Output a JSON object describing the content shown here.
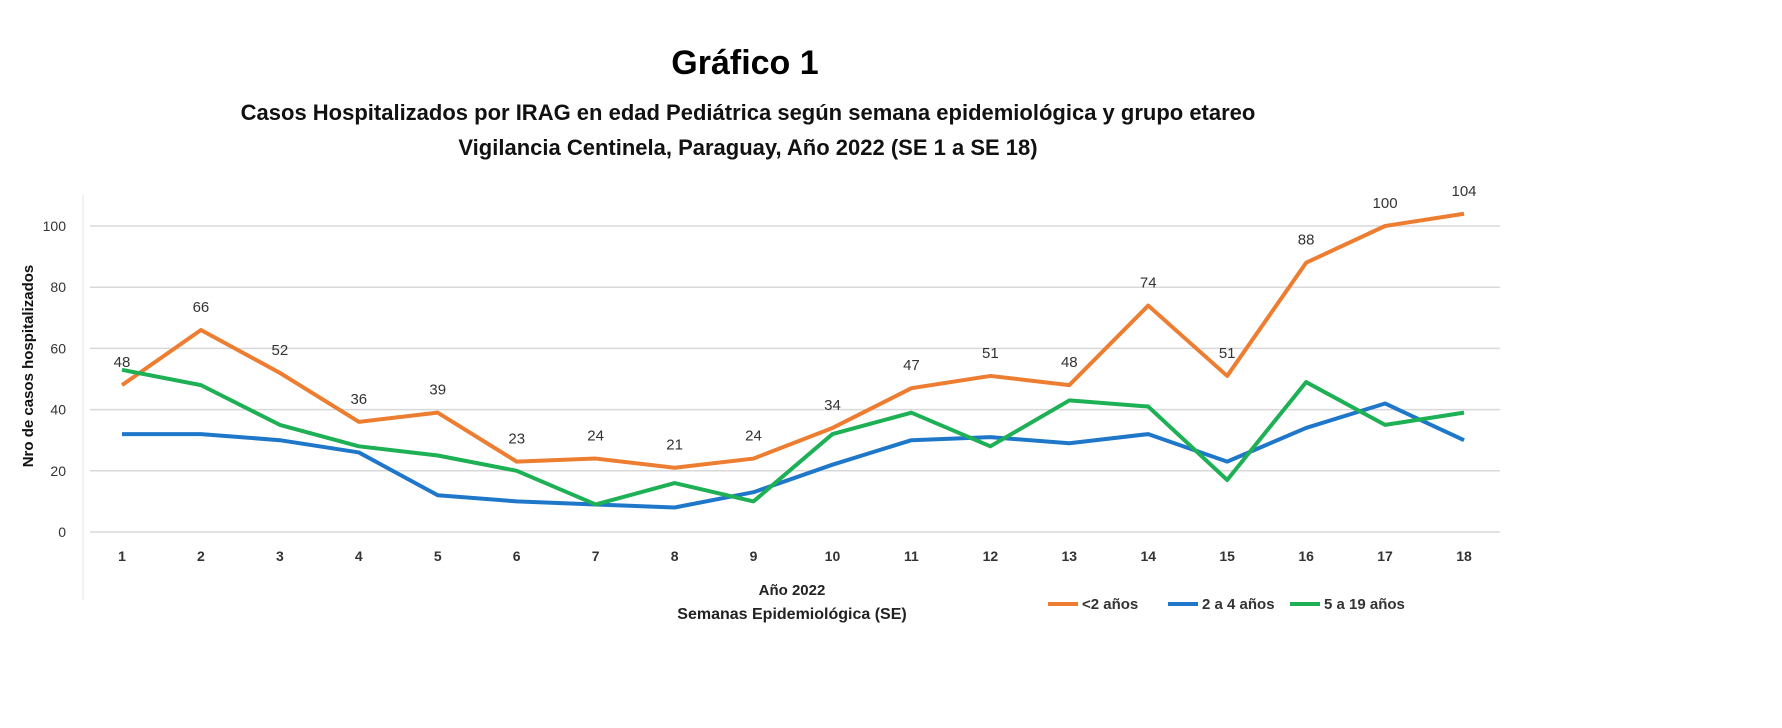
{
  "chart_data": {
    "type": "line",
    "title": "Gráfico 1",
    "subtitle": [
      "Casos Hospitalizados  por IRAG en edad Pediátrica según semana epidemiológica y grupo etareo",
      "Vigilancia Centinela, Paraguay, Año 2022 (SE 1 a SE 18)"
    ],
    "xlabel": [
      "Año 2022",
      "Semanas Epidemiológica (SE)"
    ],
    "ylabel": "Nro de casos hospitalizados",
    "x": [
      "1",
      "2",
      "3",
      "4",
      "5",
      "6",
      "7",
      "8",
      "9",
      "10",
      "11",
      "12",
      "13",
      "14",
      "15",
      "16",
      "17",
      "18"
    ],
    "ylim": [
      0,
      100
    ],
    "yticks": [
      0,
      20,
      40,
      60,
      80,
      100
    ],
    "grid": true,
    "legend_position": "bottom-right",
    "series": [
      {
        "name": "<2  años",
        "color": "#ED7D31",
        "labels": true,
        "values": [
          48,
          66,
          52,
          36,
          39,
          23,
          24,
          21,
          24,
          34,
          47,
          51,
          48,
          74,
          51,
          88,
          100,
          104
        ]
      },
      {
        "name": "2 a 4 años",
        "color": "#1F77C9",
        "labels": false,
        "values": [
          32,
          32,
          30,
          26,
          12,
          10,
          9,
          8,
          13,
          22,
          30,
          31,
          29,
          32,
          23,
          34,
          42,
          30
        ]
      },
      {
        "name": "5 a 19 años",
        "color": "#1DB055",
        "labels": false,
        "values": [
          53,
          48,
          35,
          28,
          25,
          20,
          9,
          16,
          10,
          32,
          39,
          28,
          43,
          41,
          17,
          49,
          35,
          39
        ]
      }
    ]
  }
}
